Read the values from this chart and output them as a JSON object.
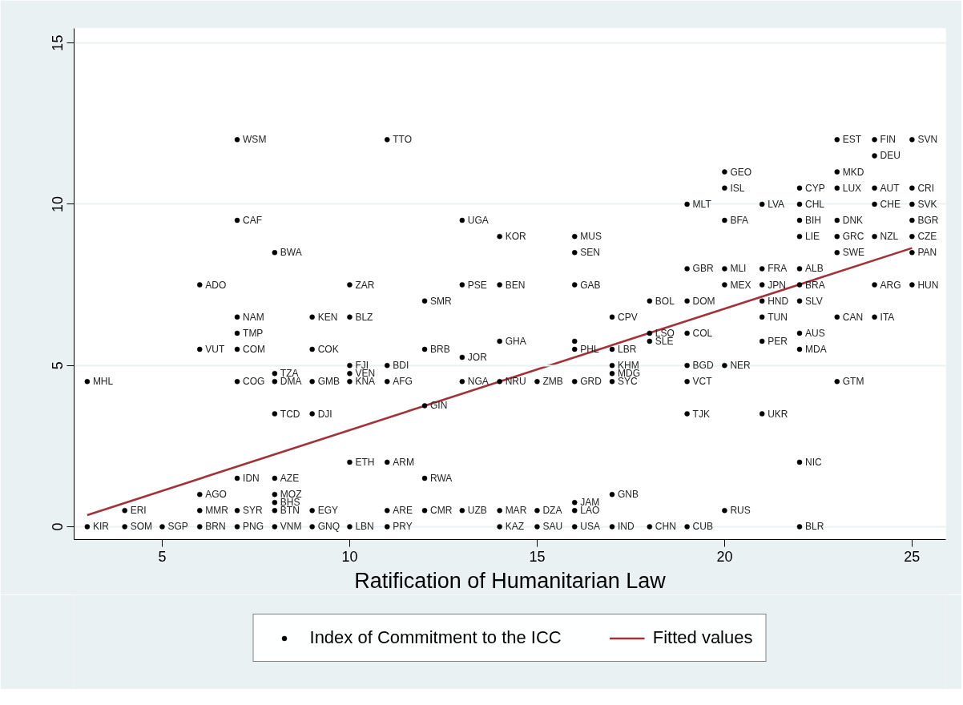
{
  "chart_data": {
    "type": "scatter",
    "xlabel": "Ratification of Humanitarian Law",
    "xlim": [
      2.65,
      25.9
    ],
    "xticks": [
      5,
      10,
      15,
      20,
      25
    ],
    "ylim": [
      -0.4,
      15.45
    ],
    "yticks": [
      0,
      5,
      10,
      15
    ],
    "grid": "y",
    "legend": "bottom",
    "series": [
      {
        "name": "Index of Commitment to the ICC",
        "color": "#000000",
        "marker": "circle",
        "x": [
          3,
          3,
          4,
          4,
          5,
          6,
          6,
          6,
          6,
          6,
          7,
          7,
          7,
          7,
          7,
          7,
          7,
          7,
          7,
          8,
          8,
          8,
          8,
          8,
          8,
          8,
          8,
          8,
          9,
          9,
          9,
          9,
          9,
          9,
          10,
          10,
          10,
          10,
          10,
          10,
          10,
          11,
          11,
          11,
          11,
          11,
          11,
          12,
          12,
          12,
          12,
          12,
          13,
          13,
          13,
          13,
          13,
          14,
          14,
          14,
          14,
          14,
          14,
          15,
          15,
          15,
          16,
          16,
          16,
          16,
          16,
          16,
          16,
          16,
          16,
          17,
          17,
          17,
          17,
          17,
          17,
          17,
          18,
          18,
          18,
          18,
          19,
          19,
          19,
          19,
          19,
          19,
          19,
          19,
          20,
          20,
          20,
          20,
          20,
          20,
          20,
          21,
          21,
          21,
          21,
          21,
          21,
          21,
          22,
          22,
          22,
          22,
          22,
          22,
          22,
          22,
          22,
          22,
          22,
          23,
          23,
          23,
          23,
          23,
          23,
          23,
          23,
          24,
          24,
          24,
          24,
          24,
          24,
          24,
          25,
          25,
          25,
          25,
          25,
          25,
          25
        ],
        "values": [
          0,
          4.5,
          0.5,
          0,
          0,
          7.5,
          5.5,
          1,
          0.5,
          0,
          12,
          9.5,
          6.5,
          6,
          5.5,
          4.5,
          1.5,
          0.5,
          0,
          8.5,
          4.75,
          4.5,
          3.5,
          1.5,
          1,
          0.75,
          0.5,
          0,
          6.5,
          5.5,
          4.5,
          3.5,
          0.5,
          0,
          7.5,
          6.5,
          5,
          4.75,
          4.5,
          2,
          0,
          12,
          5,
          4.5,
          2,
          0.5,
          0,
          7,
          5.5,
          3.75,
          1.5,
          0.5,
          9.5,
          7.5,
          5.25,
          4.5,
          0.5,
          9,
          7.5,
          5.75,
          4.5,
          0.5,
          0,
          4.5,
          0.5,
          0,
          9,
          8.5,
          7.5,
          5.75,
          5.5,
          4.5,
          0.75,
          0.5,
          0,
          6.5,
          5.5,
          5,
          4.75,
          4.5,
          1,
          0,
          7,
          6,
          5.75,
          0,
          10,
          8,
          7,
          6,
          5,
          4.5,
          3.5,
          0,
          11,
          10.5,
          9.5,
          8,
          7.5,
          5,
          0.5,
          10,
          8,
          7.5,
          7,
          6.5,
          5.75,
          3.5,
          10.5,
          10,
          9.5,
          9,
          8,
          7.5,
          7,
          6,
          5.5,
          2,
          0,
          12,
          11,
          10.5,
          9.5,
          9,
          8.5,
          6.5,
          4.5,
          12,
          11.5,
          10.5,
          10,
          9,
          7.5,
          6.5,
          12,
          10.5,
          10,
          9.5,
          9,
          8.5,
          7.5
        ],
        "value_labels": [
          "KIR",
          "MHL",
          "ERI",
          "SOM",
          "SGP",
          "ADO",
          "VUT",
          "AGO",
          "MMR",
          "BRN",
          "WSM",
          "CAF",
          "NAM",
          "TMP",
          "COM",
          "COG",
          "IDN",
          "SYR",
          "PNG",
          "BWA",
          "TZA",
          "DMA",
          "TCD",
          "AZE",
          "MOZ",
          "BHS",
          "BTN",
          "VNM",
          "KEN",
          "COK",
          "GMB",
          "DJI",
          "EGY",
          "GNQ",
          "ZAR",
          "BLZ",
          "FJI",
          "VEN",
          "KNA",
          "ETH",
          "LBN",
          "TTO",
          "BDI",
          "AFG",
          "ARM",
          "ARE",
          "PRY",
          "SMR",
          "BRB",
          "GIN",
          "RWA",
          "CMR",
          "UGA",
          "PSE",
          "JOR",
          "NGA",
          "UZB",
          "KOR",
          "BEN",
          "GHA",
          "NRU",
          "MAR",
          "KAZ",
          "ZMB",
          "DZA",
          "SAU",
          "MUS",
          "SEN",
          "GAB",
          null,
          "PHL",
          "GRD",
          "JAM",
          "LAO",
          "USA",
          "CPV",
          "LBR",
          "KHM",
          "MDG",
          "SYC",
          "GNB",
          "IND",
          "BOL",
          "LSO",
          "SLE",
          "CHN",
          "MLT",
          "GBR",
          "DOM",
          "COL",
          "BGD",
          "VCT",
          "TJK",
          "CUB",
          "GEO",
          "ISL",
          "BFA",
          "MLI",
          "MEX",
          "NER",
          "RUS",
          "LVA",
          "FRA",
          "JPN",
          "HND",
          "TUN",
          "PER",
          "UKR",
          "CYP",
          "CHL",
          "BIH",
          "LIE",
          "ALB",
          "BRA",
          "SLV",
          "AUS",
          "MDA",
          "NIC",
          "BLR",
          "EST",
          "MKD",
          "LUX",
          "DNK",
          "GRC",
          "SWE",
          "CAN",
          "GTM",
          "FIN",
          "DEU",
          "AUT",
          "CHE",
          "NZL",
          "ARG",
          "ITA",
          "SVN",
          "CRI",
          "SVK",
          "BGR",
          "CZE",
          "PAN",
          "HUN"
        ]
      },
      {
        "type": "line",
        "name": "Fitted values",
        "color": "#a03238",
        "x": [
          3,
          25
        ],
        "values": [
          0.36,
          8.64
        ]
      }
    ]
  }
}
